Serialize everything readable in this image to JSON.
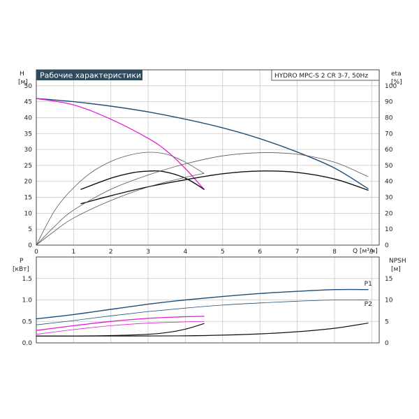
{
  "header": {
    "title": "Рабочие характеристики",
    "model": "HYDRO MPC-S 2 CR 3-7, 50Hz"
  },
  "colors": {
    "dark_blue": "#1f4e79",
    "black": "#111111",
    "magenta": "#e020d0",
    "gray": "#555555",
    "grid": "#c8c8c8",
    "title_bg": "#2f4b5e"
  },
  "chart_data": [
    {
      "type": "line",
      "panel": "head-efficiency",
      "x_label": "Q [м³/ч]",
      "y_left_label": [
        "H",
        "[м]"
      ],
      "y_right_label": [
        "eta",
        "[%]"
      ],
      "xlim": [
        0,
        9.2
      ],
      "ylim_left": [
        0,
        55
      ],
      "ylim_right": [
        0,
        110
      ],
      "x_ticks": [
        "0",
        "1",
        "2",
        "3",
        "4",
        "5",
        "6",
        "7",
        "8",
        "9"
      ],
      "y_left_ticks": [
        "0",
        "5",
        "10",
        "15",
        "20",
        "25",
        "30",
        "35",
        "40",
        "45",
        "50"
      ],
      "y_right_ticks": [
        "0",
        "10",
        "20",
        "30",
        "40",
        "50",
        "60",
        "70",
        "80",
        "90",
        "100"
      ],
      "grid": true,
      "series": [
        {
          "axis": "left",
          "color": "dark_blue",
          "width": 1.4,
          "points": [
            [
              0,
              46
            ],
            [
              1,
              45
            ],
            [
              2,
              43.6
            ],
            [
              3,
              41.8
            ],
            [
              4,
              39.5
            ],
            [
              5,
              36.8
            ],
            [
              6,
              33.4
            ],
            [
              7,
              29.2
            ],
            [
              8,
              24.2
            ],
            [
              8.9,
              17.7
            ]
          ]
        },
        {
          "axis": "left",
          "color": "magenta",
          "width": 1.3,
          "points": [
            [
              0,
              46
            ],
            [
              1,
              44
            ],
            [
              2,
              39.5
            ],
            [
              3,
              33.5
            ],
            [
              3.5,
              29.5
            ],
            [
              4,
              24
            ],
            [
              4.5,
              17.5
            ]
          ]
        },
        {
          "axis": "right",
          "color": "black",
          "width": 1.4,
          "points": [
            [
              1.2,
              35
            ],
            [
              2,
              42
            ],
            [
              2.6,
              45.5
            ],
            [
              3,
              46.4
            ],
            [
              3.4,
              46.2
            ],
            [
              4,
              42
            ],
            [
              4.5,
              35
            ]
          ]
        },
        {
          "axis": "right",
          "color": "gray",
          "width": 0.8,
          "points": [
            [
              0,
              0
            ],
            [
              0.5,
              22
            ],
            [
              1,
              36
            ],
            [
              1.5,
              46
            ],
            [
              2,
              52.5
            ],
            [
              2.5,
              56.5
            ],
            [
              3,
              58.3
            ],
            [
              3.5,
              57
            ],
            [
              4,
              52
            ],
            [
              4.5,
              45
            ]
          ]
        },
        {
          "axis": "right",
          "color": "black",
          "width": 1.4,
          "points": [
            [
              1.2,
              26
            ],
            [
              2,
              31
            ],
            [
              3,
              36.6
            ],
            [
              4,
              41
            ],
            [
              5,
              44.8
            ],
            [
              6,
              46.5
            ],
            [
              7,
              45.6
            ],
            [
              8,
              41.5
            ],
            [
              8.9,
              34.5
            ]
          ]
        },
        {
          "axis": "right",
          "color": "gray",
          "width": 0.8,
          "points": [
            [
              0,
              0
            ],
            [
              0.5,
              12
            ],
            [
              1,
              22
            ],
            [
              2,
              35
            ],
            [
              3,
              44
            ],
            [
              4,
              51
            ],
            [
              5,
              56
            ],
            [
              6,
              58
            ],
            [
              7,
              57
            ],
            [
              8,
              52
            ],
            [
              8.9,
              43
            ]
          ]
        },
        {
          "axis": "right",
          "color": "gray",
          "width": 0.8,
          "points": [
            [
              0,
              0
            ],
            [
              0.5,
              9
            ],
            [
              1,
              17
            ],
            [
              2,
              28
            ],
            [
              3,
              36.5
            ],
            [
              4,
              42.5
            ],
            [
              4.5,
              45
            ]
          ]
        }
      ]
    },
    {
      "type": "line",
      "panel": "power-npsh",
      "y_left_label": [
        "P",
        "[кВт]"
      ],
      "y_right_label": [
        "NPSH",
        "[м]"
      ],
      "xlim": [
        0,
        9.2
      ],
      "ylim_left": [
        0,
        2
      ],
      "ylim_right": [
        0,
        20
      ],
      "y_left_ticks": [
        "0.0",
        "0.5",
        "1.0",
        "1.5"
      ],
      "y_right_ticks": [
        "0",
        "5",
        "10",
        "15"
      ],
      "grid": true,
      "series": [
        {
          "axis": "left",
          "color": "dark_blue",
          "width": 1.4,
          "points": [
            [
              0,
              0.56
            ],
            [
              1,
              0.66
            ],
            [
              2,
              0.78
            ],
            [
              3,
              0.9
            ],
            [
              4,
              1.0
            ],
            [
              5,
              1.08
            ],
            [
              6,
              1.15
            ],
            [
              7,
              1.2
            ],
            [
              8,
              1.24
            ],
            [
              8.9,
              1.24
            ]
          ]
        },
        {
          "axis": "left",
          "color": "dark_blue",
          "width": 0.8,
          "points": [
            [
              0,
              0.42
            ],
            [
              1,
              0.52
            ],
            [
              2,
              0.63
            ],
            [
              3,
              0.73
            ],
            [
              4,
              0.81
            ],
            [
              5,
              0.88
            ],
            [
              6,
              0.93
            ],
            [
              7,
              0.97
            ],
            [
              8,
              1.0
            ],
            [
              8.9,
              1.0
            ]
          ]
        },
        {
          "axis": "left",
          "color": "magenta",
          "width": 1.3,
          "points": [
            [
              0,
              0.29
            ],
            [
              1,
              0.4
            ],
            [
              2,
              0.5
            ],
            [
              3,
              0.57
            ],
            [
              4,
              0.61
            ],
            [
              4.5,
              0.62
            ]
          ]
        },
        {
          "axis": "left",
          "color": "magenta",
          "width": 0.8,
          "points": [
            [
              0,
              0.2
            ],
            [
              1,
              0.31
            ],
            [
              2,
              0.4
            ],
            [
              3,
              0.46
            ],
            [
              4,
              0.49
            ],
            [
              4.5,
              0.5
            ]
          ]
        },
        {
          "axis": "right",
          "color": "black",
          "width": 1.2,
          "points": [
            [
              0,
              1.6
            ],
            [
              1,
              1.6
            ],
            [
              2,
              1.7
            ],
            [
              3,
              2.0
            ],
            [
              3.5,
              2.4
            ],
            [
              4,
              3.2
            ],
            [
              4.5,
              4.5
            ]
          ]
        },
        {
          "axis": "right",
          "color": "black",
          "width": 1.2,
          "points": [
            [
              0,
              1.6
            ],
            [
              2,
              1.6
            ],
            [
              4,
              1.65
            ],
            [
              5,
              1.8
            ],
            [
              6,
              2.1
            ],
            [
              7,
              2.6
            ],
            [
              8,
              3.4
            ],
            [
              8.9,
              4.6
            ]
          ]
        }
      ],
      "labels": [
        {
          "text": "P1",
          "x": 8.8,
          "y": 1.33
        },
        {
          "text": "P2",
          "x": 8.8,
          "y": 0.86
        }
      ]
    }
  ]
}
